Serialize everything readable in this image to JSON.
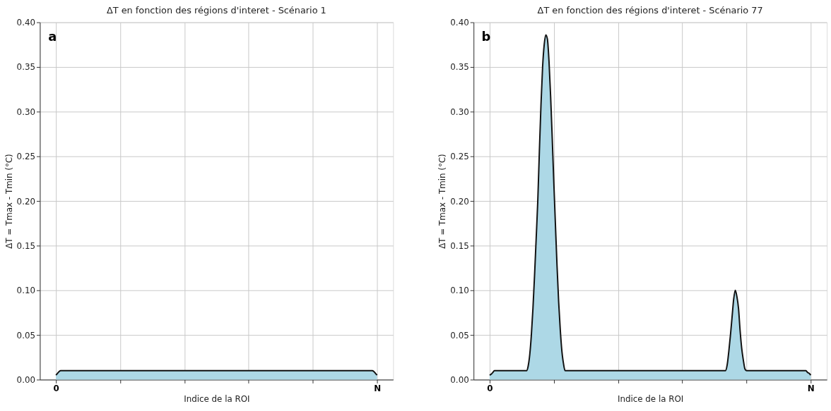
{
  "chart_data": [
    {
      "type": "area",
      "title": "ΔT en fonction des régions d'interet - Scénario 1",
      "xlabel": "Indice de la ROI",
      "ylabel": "ΔT = Tmax - Tmin (°C)",
      "categories": [
        "0",
        null,
        null,
        null,
        null,
        null,
        null,
        null,
        null,
        null,
        null,
        null,
        null,
        null,
        null,
        null,
        null,
        null,
        null,
        null,
        null,
        null,
        null,
        null,
        null,
        null,
        null,
        null,
        null,
        null,
        null,
        null,
        null,
        null,
        null,
        null,
        null,
        null,
        null,
        null,
        null,
        null,
        null,
        null,
        null,
        null,
        null,
        null,
        null,
        null,
        null,
        null,
        null,
        null,
        null,
        null,
        null,
        null,
        null,
        null,
        null,
        null,
        null,
        null,
        null,
        null,
        null,
        null,
        null,
        null,
        null,
        null,
        null,
        null,
        null,
        null,
        null,
        null,
        null,
        null,
        null,
        null,
        null,
        null,
        null,
        null,
        null,
        null,
        null,
        null,
        null,
        null,
        null,
        null,
        null,
        null,
        null,
        null,
        null,
        null,
        null,
        null,
        null,
        null,
        null,
        null,
        null,
        null,
        null,
        null,
        null,
        null,
        null,
        null,
        null,
        null,
        null,
        null,
        null,
        null,
        null,
        null,
        null,
        null,
        null,
        null,
        null,
        null,
        null,
        null,
        null,
        null,
        null,
        null,
        null,
        null,
        null,
        null,
        null,
        null,
        null,
        null,
        null,
        null,
        null,
        null,
        null,
        null,
        null,
        null,
        null,
        null,
        null,
        null,
        null,
        null,
        null,
        null,
        null,
        null,
        null,
        null,
        null,
        null,
        null,
        null,
        null,
        null,
        null,
        null,
        null,
        null,
        null,
        null,
        null,
        null,
        null,
        null,
        null,
        null,
        null,
        null,
        null,
        null,
        null,
        null,
        null,
        null,
        null,
        null,
        null,
        null,
        null,
        null,
        null,
        null,
        null,
        null,
        null,
        null,
        "N"
      ],
      "series": [
        {
          "color": "#add8e6",
          "values": [
            0.005,
            0.007,
            0.009,
            0.01,
            0.01,
            0.01,
            0.01,
            0.01,
            0.01,
            0.01,
            0.01,
            0.01,
            0.01,
            0.01,
            0.01,
            0.01,
            0.01,
            0.01,
            0.01,
            0.01,
            0.01,
            0.01,
            0.01,
            0.01,
            0.01,
            0.01,
            0.01,
            0.01,
            0.01,
            0.01,
            0.01,
            0.01,
            0.01,
            0.01,
            0.01,
            0.01,
            0.01,
            0.01,
            0.01,
            0.01,
            0.01,
            0.01,
            0.01,
            0.01,
            0.01,
            0.01,
            0.01,
            0.01,
            0.01,
            0.01,
            0.01,
            0.01,
            0.01,
            0.01,
            0.01,
            0.01,
            0.01,
            0.01,
            0.01,
            0.01,
            0.01,
            0.01,
            0.01,
            0.01,
            0.01,
            0.01,
            0.01,
            0.01,
            0.01,
            0.01,
            0.01,
            0.01,
            0.01,
            0.01,
            0.01,
            0.01,
            0.01,
            0.01,
            0.01,
            0.01,
            0.01,
            0.01,
            0.01,
            0.01,
            0.01,
            0.01,
            0.01,
            0.01,
            0.01,
            0.01,
            0.01,
            0.01,
            0.01,
            0.01,
            0.01,
            0.01,
            0.01,
            0.01,
            0.01,
            0.01,
            0.01,
            0.01,
            0.01,
            0.01,
            0.01,
            0.01,
            0.01,
            0.01,
            0.01,
            0.01,
            0.01,
            0.01,
            0.01,
            0.01,
            0.01,
            0.01,
            0.01,
            0.01,
            0.01,
            0.01,
            0.01,
            0.01,
            0.01,
            0.01,
            0.01,
            0.01,
            0.01,
            0.01,
            0.01,
            0.01,
            0.01,
            0.01,
            0.01,
            0.01,
            0.01,
            0.01,
            0.01,
            0.01,
            0.01,
            0.01,
            0.01,
            0.01,
            0.01,
            0.01,
            0.01,
            0.01,
            0.01,
            0.01,
            0.01,
            0.01,
            0.01,
            0.01,
            0.01,
            0.01,
            0.01,
            0.01,
            0.01,
            0.01,
            0.01,
            0.01,
            0.01,
            0.01,
            0.01,
            0.01,
            0.01,
            0.01,
            0.01,
            0.01,
            0.01,
            0.01,
            0.01,
            0.01,
            0.01,
            0.01,
            0.01,
            0.01,
            0.01,
            0.01,
            0.01,
            0.01,
            0.01,
            0.01,
            0.01,
            0.01,
            0.01,
            0.01,
            0.01,
            0.01,
            0.01,
            0.01,
            0.01,
            0.01,
            0.01,
            0.01,
            0.01,
            0.01,
            0.01,
            0.01,
            0.009,
            0.007,
            0.005
          ]
        }
      ],
      "ylim": [
        0,
        0.4
      ],
      "yticks": [
        {
          "value": 0,
          "label": "0.00"
        },
        {
          "value": 0.05,
          "label": "0.05"
        },
        {
          "value": 0.1,
          "label": "0.10"
        },
        {
          "value": 0.15,
          "label": "0.15"
        },
        {
          "value": 0.2,
          "label": "0.20"
        },
        {
          "value": 0.25,
          "label": "0.25"
        },
        {
          "value": 0.3,
          "label": "0.30"
        },
        {
          "value": 0.35,
          "label": "0.35"
        },
        {
          "value": 0.4,
          "label": "0.40"
        }
      ],
      "grid": true,
      "annotations": [
        "a"
      ]
    },
    {
      "type": "area",
      "title": "ΔT en fonction des régions d'interet - Scénario 77",
      "xlabel": "Indice de la ROI",
      "ylabel": "ΔT = Tmax - Tmin (°C)",
      "categories": [
        "0",
        null,
        null,
        null,
        null,
        null,
        null,
        null,
        null,
        null,
        null,
        null,
        null,
        null,
        null,
        null,
        null,
        null,
        null,
        null,
        null,
        null,
        null,
        null,
        null,
        null,
        null,
        null,
        null,
        null,
        null,
        null,
        null,
        null,
        null,
        null,
        null,
        null,
        null,
        null,
        null,
        null,
        null,
        null,
        null,
        null,
        null,
        null,
        null,
        null,
        null,
        null,
        null,
        null,
        null,
        null,
        null,
        null,
        null,
        null,
        null,
        null,
        null,
        null,
        null,
        null,
        null,
        null,
        null,
        null,
        null,
        null,
        null,
        null,
        null,
        null,
        null,
        null,
        null,
        null,
        null,
        null,
        null,
        null,
        null,
        null,
        null,
        null,
        null,
        null,
        null,
        null,
        null,
        null,
        null,
        null,
        null,
        null,
        null,
        null,
        null,
        null,
        null,
        null,
        null,
        null,
        null,
        null,
        null,
        null,
        null,
        null,
        null,
        null,
        null,
        null,
        null,
        null,
        null,
        null,
        null,
        null,
        null,
        null,
        null,
        null,
        null,
        null,
        null,
        null,
        null,
        null,
        null,
        null,
        null,
        null,
        null,
        null,
        null,
        null,
        null,
        null,
        null,
        null,
        null,
        null,
        null,
        null,
        null,
        null,
        null,
        null,
        null,
        null,
        null,
        null,
        null,
        null,
        null,
        null,
        null,
        null,
        null,
        null,
        null,
        null,
        null,
        null,
        null,
        null,
        null,
        null,
        null,
        null,
        null,
        null,
        null,
        null,
        null,
        null,
        null,
        null,
        null,
        null,
        null,
        null,
        null,
        null,
        null,
        null,
        null,
        null,
        null,
        null,
        null,
        null,
        null,
        null,
        null,
        null,
        "N"
      ],
      "series": [
        {
          "color": "#add8e6",
          "values": [
            0.005,
            0.006,
            0.008,
            0.01,
            0.01,
            0.01,
            0.01,
            0.01,
            0.01,
            0.01,
            0.01,
            0.01,
            0.01,
            0.01,
            0.01,
            0.01,
            0.01,
            0.01,
            0.01,
            0.01,
            0.01,
            0.01,
            0.01,
            0.01,
            0.015,
            0.028,
            0.05,
            0.08,
            0.117,
            0.158,
            0.2,
            0.256,
            0.308,
            0.35,
            0.375,
            0.386,
            0.381,
            0.356,
            0.317,
            0.27,
            0.22,
            0.173,
            0.127,
            0.087,
            0.056,
            0.032,
            0.018,
            0.01,
            0.01,
            0.01,
            0.01,
            0.01,
            0.01,
            0.01,
            0.01,
            0.01,
            0.01,
            0.01,
            0.01,
            0.01,
            0.01,
            0.01,
            0.01,
            0.01,
            0.01,
            0.01,
            0.01,
            0.01,
            0.01,
            0.01,
            0.01,
            0.01,
            0.01,
            0.01,
            0.01,
            0.01,
            0.01,
            0.01,
            0.01,
            0.01,
            0.01,
            0.01,
            0.01,
            0.01,
            0.01,
            0.01,
            0.01,
            0.01,
            0.01,
            0.01,
            0.01,
            0.01,
            0.01,
            0.01,
            0.01,
            0.01,
            0.01,
            0.01,
            0.01,
            0.01,
            0.01,
            0.01,
            0.01,
            0.01,
            0.01,
            0.01,
            0.01,
            0.01,
            0.01,
            0.01,
            0.01,
            0.01,
            0.01,
            0.01,
            0.01,
            0.01,
            0.01,
            0.01,
            0.01,
            0.01,
            0.01,
            0.01,
            0.01,
            0.01,
            0.01,
            0.01,
            0.01,
            0.01,
            0.01,
            0.01,
            0.01,
            0.01,
            0.01,
            0.01,
            0.01,
            0.01,
            0.01,
            0.01,
            0.01,
            0.01,
            0.01,
            0.01,
            0.01,
            0.01,
            0.01,
            0.01,
            0.01,
            0.01,
            0.017,
            0.032,
            0.05,
            0.07,
            0.09,
            0.1,
            0.093,
            0.08,
            0.055,
            0.035,
            0.022,
            0.012,
            0.01,
            0.01,
            0.01,
            0.01,
            0.01,
            0.01,
            0.01,
            0.01,
            0.01,
            0.01,
            0.01,
            0.01,
            0.01,
            0.01,
            0.01,
            0.01,
            0.01,
            0.01,
            0.01,
            0.01,
            0.01,
            0.01,
            0.01,
            0.01,
            0.01,
            0.01,
            0.01,
            0.01,
            0.01,
            0.01,
            0.01,
            0.01,
            0.01,
            0.01,
            0.01,
            0.01,
            0.01,
            0.01,
            0.008,
            0.007,
            0.005
          ]
        }
      ],
      "ylim": [
        0,
        0.4
      ],
      "yticks": [
        {
          "value": 0,
          "label": "0.00"
        },
        {
          "value": 0.05,
          "label": "0.05"
        },
        {
          "value": 0.1,
          "label": "0.10"
        },
        {
          "value": 0.15,
          "label": "0.15"
        },
        {
          "value": 0.2,
          "label": "0.20"
        },
        {
          "value": 0.25,
          "label": "0.25"
        },
        {
          "value": 0.3,
          "label": "0.30"
        },
        {
          "value": 0.35,
          "label": "0.35"
        },
        {
          "value": 0.4,
          "label": "0.40"
        }
      ],
      "grid": true,
      "annotations": [
        "b"
      ]
    }
  ]
}
